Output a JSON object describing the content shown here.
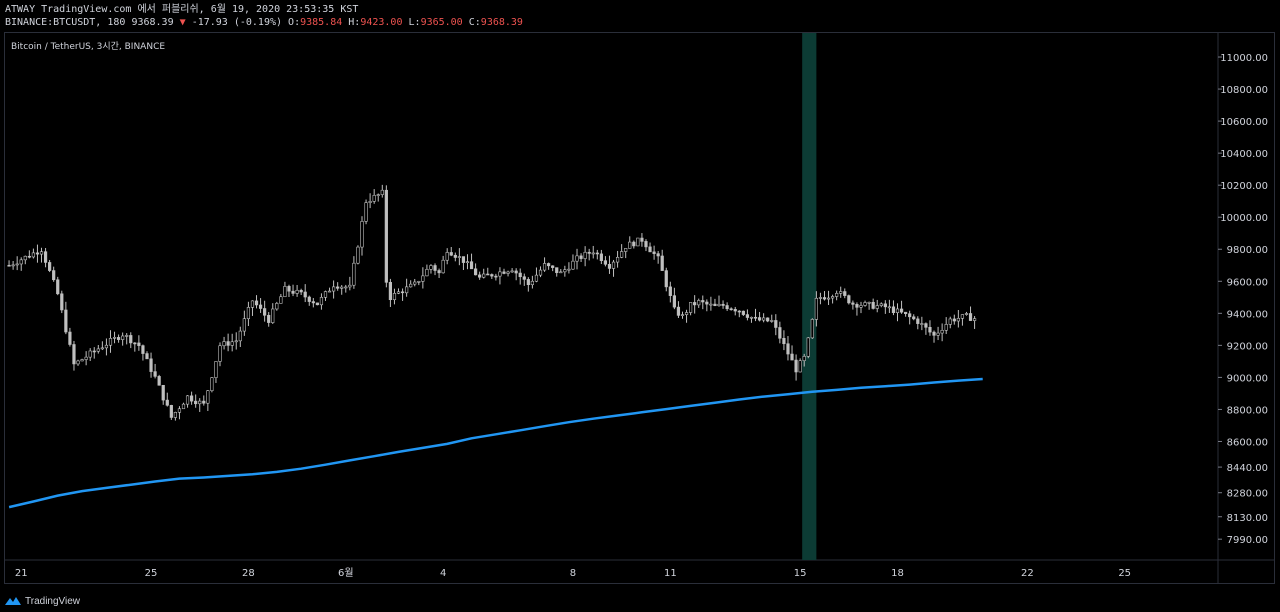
{
  "header": {
    "line1": "ATWAY TradingView.com 에서 퍼블리쉬, 6월 19, 2020 23:53:35 KST",
    "symbol": "BINANCE:BTCUSDT, 180",
    "last": "9368.39",
    "arrow": "▼",
    "change": "-17.93 (-0.19%)",
    "o_label": "O:",
    "o_value": "9385.84",
    "h_label": "H:",
    "h_value": "9423.00",
    "l_label": "L:",
    "l_value": "9365.00",
    "c_label": "C:",
    "c_value": "9368.39"
  },
  "legend": "Bitcoin / TetherUS, 3시간, BINANCE",
  "footer": {
    "brand": "TradingView"
  },
  "colors": {
    "background": "#000000",
    "candle": "#c0c0c0",
    "ma": "#2196f3",
    "highlight": "#0c3b34",
    "down": "#ef5350"
  },
  "chart_data": {
    "type": "line",
    "y_ticks": [
      "11000.00",
      "10800.00",
      "10600.00",
      "10400.00",
      "10200.00",
      "10000.00",
      "9800.00",
      "9600.00",
      "9400.00",
      "9200.00",
      "9000.00",
      "8800.00",
      "8600.00",
      "8440.00",
      "8280.00",
      "8130.00",
      "7990.00"
    ],
    "x_ticks": [
      {
        "label": "21",
        "i": 3
      },
      {
        "label": "25",
        "i": 35
      },
      {
        "label": "28",
        "i": 59
      },
      {
        "label": "6월",
        "i": 83
      },
      {
        "label": "4",
        "i": 107
      },
      {
        "label": "8",
        "i": 139
      },
      {
        "label": "11",
        "i": 163
      },
      {
        "label": "15",
        "i": 195
      },
      {
        "label": "18",
        "i": 219
      },
      {
        "label": "22",
        "i": 251
      },
      {
        "label": "25",
        "i": 275
      }
    ],
    "highlight_range": [
      195.5,
      199
    ],
    "price_series": {
      "name": "",
      "x": [
        0,
        8,
        12,
        16,
        22,
        28,
        32,
        36,
        40,
        44,
        48,
        52,
        56,
        60,
        64,
        68,
        72,
        76,
        80,
        84,
        88,
        92,
        93,
        94,
        96,
        100,
        104,
        106,
        108,
        112,
        116,
        120,
        124,
        128,
        132,
        136,
        140,
        144,
        148,
        152,
        156,
        160,
        164,
        166,
        168,
        170,
        174,
        176,
        180,
        184,
        188,
        192,
        194,
        196,
        197,
        198,
        199,
        200,
        202,
        204,
        208,
        212,
        216,
        220,
        224,
        228,
        232,
        236,
        238
      ],
      "values": [
        9700,
        9800,
        9520,
        9080,
        9180,
        9270,
        9200,
        9000,
        8750,
        8880,
        8830,
        9200,
        9230,
        9480,
        9360,
        9550,
        9520,
        9460,
        9580,
        9560,
        10100,
        10150,
        9600,
        9500,
        9530,
        9580,
        9700,
        9650,
        9800,
        9730,
        9620,
        9650,
        9680,
        9580,
        9700,
        9650,
        9740,
        9790,
        9700,
        9820,
        9860,
        9740,
        9420,
        9380,
        9450,
        9470,
        9440,
        9450,
        9420,
        9360,
        9350,
        9150,
        9050,
        9120,
        9230,
        9350,
        9480,
        9500,
        9510,
        9540,
        9460,
        9450,
        9440,
        9400,
        9350,
        9260,
        9360,
        9380,
        9368
      ]
    },
    "ma_series": {
      "name": "",
      "x": [
        0,
        6,
        12,
        18,
        24,
        30,
        36,
        42,
        48,
        54,
        60,
        66,
        72,
        78,
        84,
        90,
        96,
        102,
        108,
        114,
        120,
        126,
        132,
        138,
        144,
        150,
        156,
        162,
        168,
        174,
        180,
        186,
        192,
        198,
        204,
        210,
        216,
        222,
        228,
        234,
        240
      ],
      "values": [
        8190,
        8225,
        8262,
        8290,
        8310,
        8330,
        8350,
        8368,
        8375,
        8385,
        8395,
        8410,
        8430,
        8455,
        8482,
        8508,
        8535,
        8560,
        8585,
        8620,
        8645,
        8670,
        8695,
        8720,
        8742,
        8762,
        8782,
        8802,
        8822,
        8842,
        8862,
        8880,
        8895,
        8910,
        8922,
        8935,
        8945,
        8955,
        8968,
        8980,
        8990
      ]
    },
    "ylim": [
      7860,
      11150
    ],
    "xlim": [
      -1,
      298
    ]
  }
}
